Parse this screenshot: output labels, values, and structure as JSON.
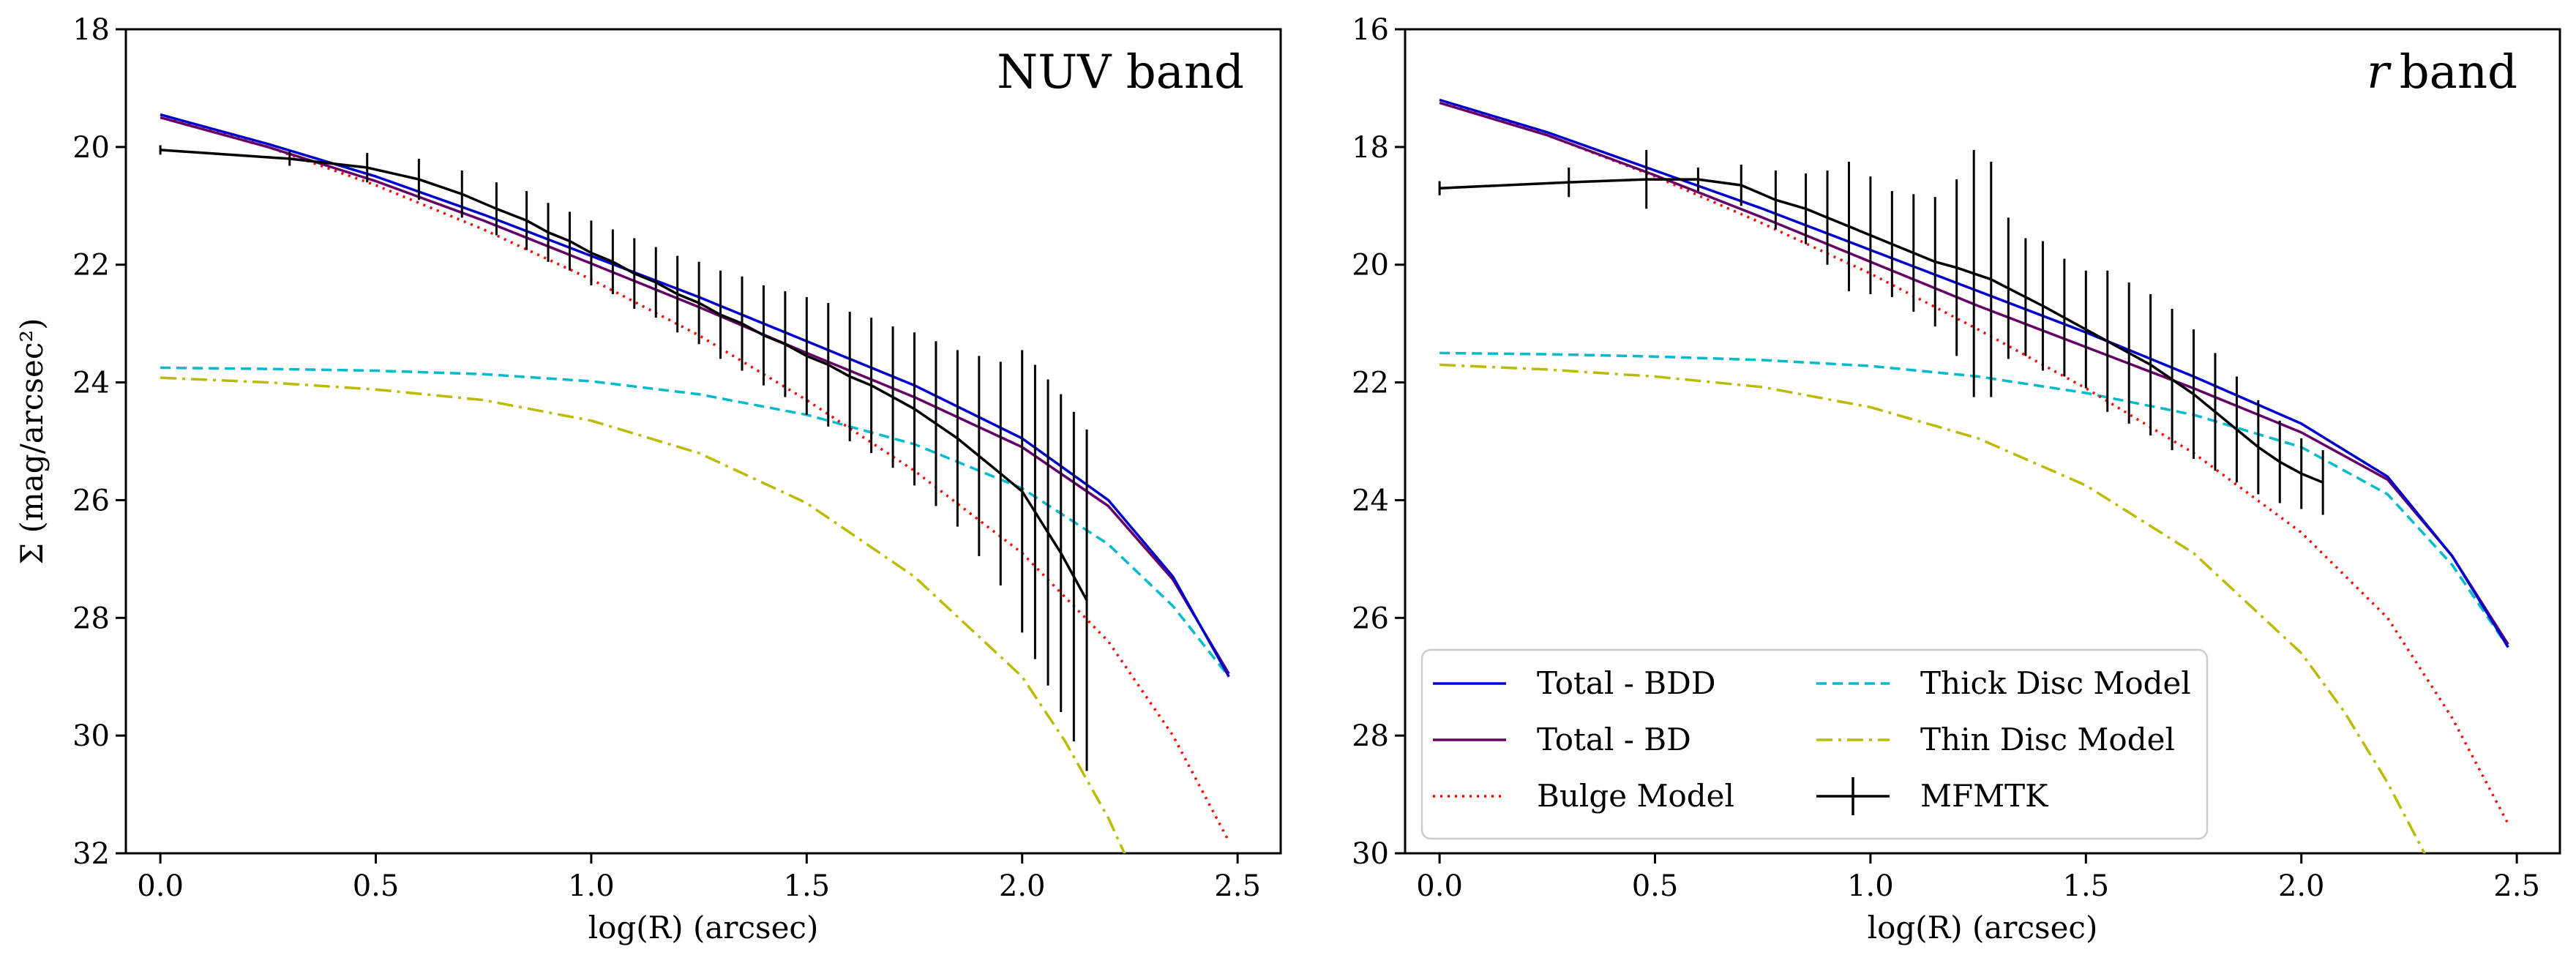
{
  "figure": {
    "ylabel": "Σ (mag/arcsec²)",
    "legend": {
      "entries": [
        {
          "key": "total_bdd",
          "label": "Total - BDD"
        },
        {
          "key": "thick",
          "label": "Thick Disc Model"
        },
        {
          "key": "total_bd",
          "label": "Total - BD"
        },
        {
          "key": "thin",
          "label": "Thin Disc Model"
        },
        {
          "key": "bulge",
          "label": "Bulge Model"
        },
        {
          "key": "mfmtk",
          "label": "MFMTK"
        }
      ]
    }
  },
  "chart_data": [
    {
      "type": "line",
      "title": "NUV band",
      "xlabel": "log(R) (arcsec)",
      "ylabel": "Σ (mag/arcsec²)",
      "xlim": [
        -0.08,
        2.6
      ],
      "ylim": [
        32,
        18
      ],
      "y_inverted": true,
      "xticks": [
        "0.0",
        "0.5",
        "1.0",
        "1.5",
        "2.0",
        "2.5"
      ],
      "yticks": [
        "18",
        "20",
        "22",
        "24",
        "26",
        "28",
        "30",
        "32"
      ],
      "xtick_values": [
        0,
        0.5,
        1.0,
        1.5,
        2.0,
        2.5
      ],
      "ytick_values": [
        18,
        20,
        22,
        24,
        26,
        28,
        30,
        32
      ],
      "x": [
        0,
        0.25,
        0.5,
        0.75,
        1.0,
        1.25,
        1.5,
        1.75,
        2.0,
        2.2,
        2.35,
        2.48
      ],
      "series": [
        {
          "key": "total_bdd",
          "name": "Total - BDD",
          "color": "#0000cc",
          "style": "solid",
          "x": [
            0,
            0.25,
            0.5,
            0.75,
            1.0,
            1.25,
            1.5,
            1.75,
            2.0,
            2.2,
            2.35,
            2.48
          ],
          "values": [
            19.45,
            19.95,
            20.5,
            21.15,
            21.85,
            22.55,
            23.3,
            24.05,
            24.95,
            26.0,
            27.3,
            29.0
          ]
        },
        {
          "key": "total_bd",
          "name": "Total - BD",
          "color": "#660066",
          "style": "solid",
          "x": [
            0,
            0.25,
            0.5,
            0.75,
            1.0,
            1.25,
            1.5,
            1.75,
            2.0,
            2.2,
            2.35,
            2.48
          ],
          "values": [
            19.5,
            20.0,
            20.58,
            21.25,
            21.98,
            22.72,
            23.5,
            24.25,
            25.1,
            26.1,
            27.35,
            28.95
          ]
        },
        {
          "key": "bulge",
          "name": "Bulge Model",
          "color": "#ff0000",
          "style": "dotted",
          "x": [
            0,
            0.25,
            0.5,
            0.75,
            1.0,
            1.25,
            1.5,
            1.75,
            2.0,
            2.2,
            2.35,
            2.48
          ],
          "values": [
            19.45,
            20.0,
            20.65,
            21.4,
            22.25,
            23.2,
            24.3,
            25.5,
            26.9,
            28.4,
            30.0,
            31.8
          ]
        },
        {
          "key": "thick",
          "name": "Thick Disc Model",
          "color": "#00bbcc",
          "style": "dashed",
          "x": [
            0,
            0.25,
            0.5,
            0.75,
            1.0,
            1.25,
            1.5,
            1.75,
            2.0,
            2.2,
            2.35,
            2.48
          ],
          "values": [
            23.75,
            23.77,
            23.8,
            23.86,
            23.98,
            24.2,
            24.55,
            25.05,
            25.8,
            26.75,
            27.8,
            29.0
          ]
        },
        {
          "key": "thin",
          "name": "Thin Disc Model",
          "color": "#bbbb00",
          "style": "dashdot",
          "x": [
            0,
            0.25,
            0.5,
            0.75,
            1.0,
            1.25,
            1.5,
            1.75,
            2.0,
            2.1,
            2.2,
            2.25
          ],
          "values": [
            23.92,
            24.0,
            24.12,
            24.3,
            24.65,
            25.2,
            26.05,
            27.3,
            29.0,
            30.1,
            31.4,
            32.2
          ]
        },
        {
          "key": "mfmtk",
          "name": "MFMTK",
          "color": "#000000",
          "style": "errorbar",
          "x": [
            0,
            0.3,
            0.48,
            0.6,
            0.7,
            0.78,
            0.85,
            0.9,
            0.95,
            1.0,
            1.05,
            1.1,
            1.15,
            1.2,
            1.25,
            1.3,
            1.35,
            1.4,
            1.45,
            1.5,
            1.55,
            1.6,
            1.65,
            1.7,
            1.75,
            1.8,
            1.85,
            1.9,
            1.95,
            2.0,
            2.03,
            2.06,
            2.09,
            2.12,
            2.15
          ],
          "values": [
            20.05,
            20.2,
            20.35,
            20.55,
            20.8,
            21.05,
            21.25,
            21.45,
            21.6,
            21.8,
            21.95,
            22.15,
            22.3,
            22.5,
            22.65,
            22.85,
            23.0,
            23.2,
            23.35,
            23.55,
            23.7,
            23.9,
            24.05,
            24.25,
            24.45,
            24.7,
            24.95,
            25.25,
            25.55,
            25.85,
            26.2,
            26.55,
            26.9,
            27.3,
            27.7
          ],
          "errors": [
            0.08,
            0.12,
            0.25,
            0.35,
            0.4,
            0.45,
            0.5,
            0.5,
            0.5,
            0.55,
            0.55,
            0.6,
            0.6,
            0.65,
            0.7,
            0.75,
            0.8,
            0.85,
            0.9,
            1.0,
            1.05,
            1.1,
            1.15,
            1.2,
            1.3,
            1.4,
            1.5,
            1.7,
            1.9,
            2.4,
            2.5,
            2.6,
            2.7,
            2.8,
            2.9
          ]
        }
      ]
    },
    {
      "type": "line",
      "title": "r band",
      "title_italic_part": "r",
      "title_rest": "band",
      "xlabel": "log(R) (arcsec)",
      "ylabel": "",
      "xlim": [
        -0.08,
        2.6
      ],
      "ylim": [
        30,
        16
      ],
      "y_inverted": true,
      "xticks": [
        "0.0",
        "0.5",
        "1.0",
        "1.5",
        "2.0",
        "2.5"
      ],
      "yticks": [
        "16",
        "18",
        "20",
        "22",
        "24",
        "26",
        "28",
        "30"
      ],
      "xtick_values": [
        0,
        0.5,
        1.0,
        1.5,
        2.0,
        2.5
      ],
      "ytick_values": [
        16,
        18,
        20,
        22,
        24,
        26,
        28,
        30
      ],
      "series": [
        {
          "key": "total_bdd",
          "name": "Total - BDD",
          "color": "#0000cc",
          "style": "solid",
          "x": [
            0,
            0.25,
            0.5,
            0.75,
            1.0,
            1.25,
            1.5,
            1.75,
            2.0,
            2.2,
            2.35,
            2.48
          ],
          "values": [
            17.2,
            17.75,
            18.4,
            19.05,
            19.75,
            20.45,
            21.15,
            21.9,
            22.7,
            23.6,
            24.95,
            26.5
          ]
        },
        {
          "key": "total_bd",
          "name": "Total - BD",
          "color": "#660066",
          "style": "solid",
          "x": [
            0,
            0.25,
            0.5,
            0.75,
            1.0,
            1.25,
            1.5,
            1.75,
            2.0,
            2.2,
            2.35,
            2.48
          ],
          "values": [
            17.25,
            17.8,
            18.48,
            19.2,
            19.95,
            20.7,
            21.4,
            22.1,
            22.85,
            23.65,
            24.95,
            26.45
          ]
        },
        {
          "key": "bulge",
          "name": "Bulge Model",
          "color": "#ff0000",
          "style": "dotted",
          "x": [
            0,
            0.25,
            0.5,
            0.75,
            1.0,
            1.25,
            1.5,
            1.75,
            2.0,
            2.2,
            2.35,
            2.48
          ],
          "values": [
            17.2,
            17.8,
            18.5,
            19.3,
            20.15,
            21.1,
            22.1,
            23.2,
            24.55,
            26.0,
            27.7,
            29.5
          ]
        },
        {
          "key": "thick",
          "name": "Thick Disc Model",
          "color": "#00bbcc",
          "style": "dashed",
          "x": [
            0,
            0.25,
            0.5,
            0.75,
            1.0,
            1.25,
            1.5,
            1.75,
            2.0,
            2.2,
            2.35,
            2.48
          ],
          "values": [
            21.5,
            21.52,
            21.56,
            21.62,
            21.72,
            21.9,
            22.18,
            22.55,
            23.1,
            23.9,
            25.1,
            26.5
          ]
        },
        {
          "key": "thin",
          "name": "Thin Disc Model",
          "color": "#bbbb00",
          "style": "dashdot",
          "x": [
            0,
            0.25,
            0.5,
            0.75,
            1.0,
            1.25,
            1.5,
            1.75,
            2.0,
            2.1,
            2.2,
            2.3
          ],
          "values": [
            21.7,
            21.78,
            21.9,
            22.08,
            22.42,
            22.95,
            23.75,
            24.9,
            26.6,
            27.6,
            28.8,
            30.2
          ]
        },
        {
          "key": "mfmtk",
          "name": "MFMTK",
          "color": "#000000",
          "style": "errorbar",
          "x": [
            0,
            0.3,
            0.48,
            0.6,
            0.7,
            0.78,
            0.85,
            0.9,
            0.95,
            1.0,
            1.05,
            1.1,
            1.15,
            1.2,
            1.24,
            1.28,
            1.32,
            1.36,
            1.4,
            1.45,
            1.5,
            1.55,
            1.6,
            1.65,
            1.7,
            1.75,
            1.8,
            1.85,
            1.9,
            1.95,
            2.0,
            2.05
          ],
          "values": [
            18.7,
            18.6,
            18.55,
            18.55,
            18.65,
            18.9,
            19.05,
            19.2,
            19.35,
            19.5,
            19.65,
            19.8,
            19.95,
            20.05,
            20.15,
            20.25,
            20.4,
            20.55,
            20.7,
            20.9,
            21.1,
            21.3,
            21.5,
            21.7,
            21.95,
            22.2,
            22.5,
            22.8,
            23.1,
            23.35,
            23.55,
            23.7
          ],
          "errors": [
            0.12,
            0.25,
            0.5,
            0.2,
            0.35,
            0.5,
            0.6,
            0.8,
            1.1,
            1.0,
            0.9,
            1.0,
            1.1,
            1.5,
            2.1,
            2.0,
            1.2,
            1.0,
            1.1,
            1.0,
            1.0,
            1.2,
            1.2,
            1.2,
            1.2,
            1.1,
            1.0,
            0.9,
            0.8,
            0.7,
            0.6,
            0.55
          ]
        }
      ]
    }
  ]
}
